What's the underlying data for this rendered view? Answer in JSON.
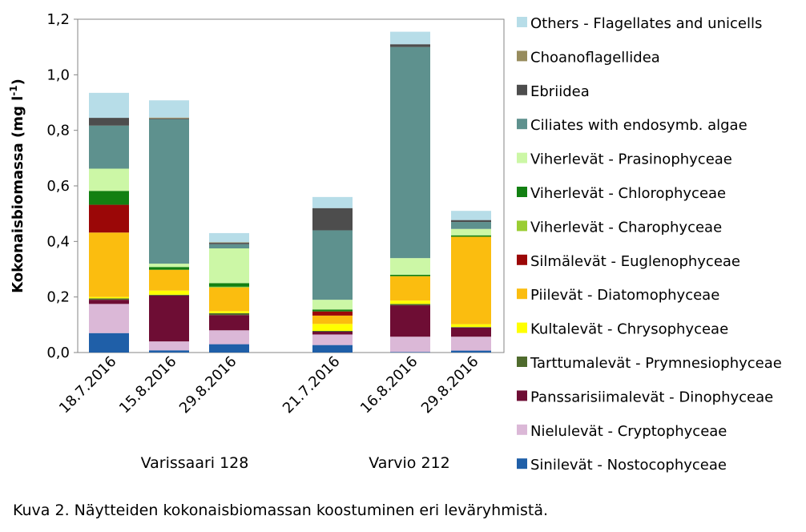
{
  "chart_data": {
    "type": "bar",
    "stacked": true,
    "ylabel_main": "Kokonaisbiomassa (mg l",
    "ylabel_sup": "-1",
    "ylabel_close": ")",
    "ylim": [
      0,
      1.2
    ],
    "yticks": [
      "0,0",
      "0,2",
      "0,4",
      "0,6",
      "0,8",
      "1,0",
      "1,2"
    ],
    "ytick_values": [
      0,
      0.2,
      0.4,
      0.6,
      0.8,
      1.0,
      1.2
    ],
    "grid": false,
    "legend_position": "right",
    "categories": [
      "18.7.2016",
      "15.8.2016",
      "29.8.2016",
      "21.7.2016",
      "16.8.2016",
      "29.8.2016"
    ],
    "groups": [
      {
        "label": "Varissaari 128",
        "categories": [
          0,
          1,
          2
        ]
      },
      {
        "label": "Varvio 212",
        "categories": [
          3,
          4,
          5
        ]
      }
    ],
    "series": [
      {
        "name": "Sinilevät - Nostocophyceae",
        "color": "#1f5fa8",
        "values": [
          0.07,
          0.008,
          0.03,
          0.027,
          0.002,
          0.007
        ]
      },
      {
        "name": "Nielulevät - Cryptophyceae",
        "color": "#dbb8d7",
        "values": [
          0.105,
          0.032,
          0.05,
          0.038,
          0.055,
          0.05
        ]
      },
      {
        "name": "Panssarisiimalevät - Dinophyceae",
        "color": "#6e0d34",
        "values": [
          0.015,
          0.165,
          0.055,
          0.01,
          0.113,
          0.033
        ]
      },
      {
        "name": "Tarttumalevät - Prymnesiophyceae",
        "color": "#4f6b2d",
        "values": [
          0.005,
          0.003,
          0.007,
          0.003,
          0.005,
          0.002
        ]
      },
      {
        "name": "Kultalevät - Chrysophyceae",
        "color": "#ffff00",
        "values": [
          0.005,
          0.015,
          0.007,
          0.025,
          0.012,
          0.01
        ]
      },
      {
        "name": "Piilevät - Diatomophyceae",
        "color": "#fbbd0f",
        "values": [
          0.232,
          0.075,
          0.085,
          0.03,
          0.088,
          0.315
        ]
      },
      {
        "name": "Silmälevät - Euglenophyceae",
        "color": "#9b0707",
        "values": [
          0.1,
          0.0,
          0.0,
          0.015,
          0.0,
          0.0
        ]
      },
      {
        "name": "Viherlevät - Charophyceae",
        "color": "#9acd32",
        "values": [
          0.0,
          0.0,
          0.003,
          0.0,
          0.0,
          0.0
        ]
      },
      {
        "name": "Viherlevät - Chlorophyceae",
        "color": "#128012",
        "values": [
          0.05,
          0.01,
          0.013,
          0.007,
          0.005,
          0.005
        ]
      },
      {
        "name": "Viherlevät - Prasinophyceae",
        "color": "#ccf7a6",
        "values": [
          0.08,
          0.012,
          0.125,
          0.035,
          0.06,
          0.023
        ]
      },
      {
        "name": "Ciliates with endosymb. algae",
        "color": "#5e918e",
        "values": [
          0.155,
          0.52,
          0.015,
          0.25,
          0.76,
          0.025
        ]
      },
      {
        "name": "Ebriidea",
        "color": "#4d4d4d",
        "values": [
          0.028,
          0.003,
          0.005,
          0.08,
          0.01,
          0.007
        ]
      },
      {
        "name": "Choanoflagellidea",
        "color": "#978c5d",
        "values": [
          0.0,
          0.003,
          0.002,
          0.0,
          0.0,
          0.0
        ]
      },
      {
        "name": "Others - Flagellates and unicells",
        "color": "#b7dde8",
        "values": [
          0.09,
          0.062,
          0.033,
          0.04,
          0.045,
          0.033
        ]
      }
    ]
  },
  "caption": {
    "text": "Kuva 2. Näytteiden kokonaisbiomassan koostuminen eri leväryhmistä."
  }
}
